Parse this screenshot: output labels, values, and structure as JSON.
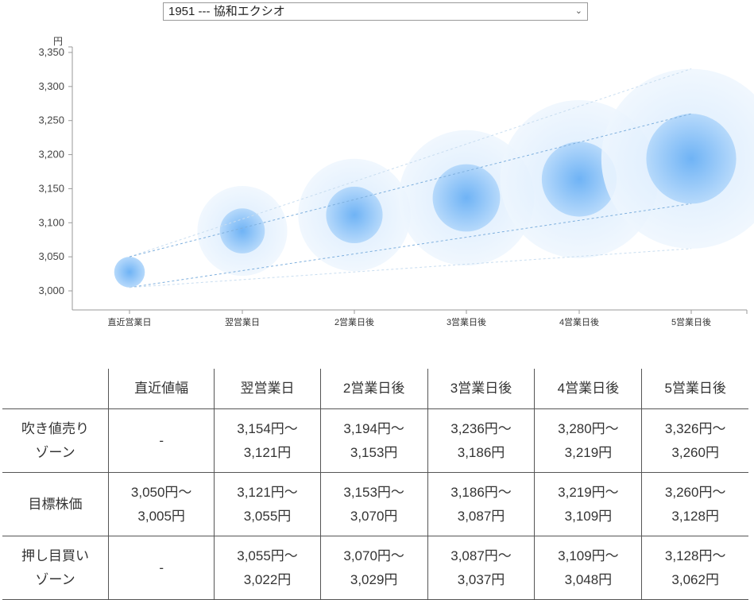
{
  "selector": {
    "value": "1951 --- 協和エクシオ"
  },
  "chart_data": {
    "type": "bubble-range",
    "y_unit": "円",
    "ylim": [
      3000,
      3350
    ],
    "yticks": [
      3000,
      3050,
      3100,
      3150,
      3200,
      3250,
      3300,
      3350
    ],
    "ytick_labels": [
      "3,000",
      "3,050",
      "3,100",
      "3,150",
      "3,200",
      "3,250",
      "3,300",
      "3,350"
    ],
    "categories": [
      "直近営業日",
      "翌営業日",
      "2営業日後",
      "3営業日後",
      "4営業日後",
      "5営業日後"
    ],
    "target_high": [
      3050,
      3121,
      3153,
      3186,
      3219,
      3260
    ],
    "target_low": [
      3005,
      3055,
      3070,
      3087,
      3109,
      3128
    ],
    "sell_zone_high": [
      null,
      3154,
      3194,
      3236,
      3280,
      3326
    ],
    "buy_zone_low": [
      null,
      3022,
      3029,
      3037,
      3048,
      3062
    ]
  },
  "table": {
    "headers": [
      "",
      "直近値幅",
      "翌営業日",
      "2営業日後",
      "3営業日後",
      "4営業日後",
      "5営業日後"
    ],
    "rows": [
      {
        "label": [
          "吹き値売り",
          "ゾーン"
        ],
        "cells": [
          [
            "-"
          ],
          [
            "3,154円～",
            "3,121円"
          ],
          [
            "3,194円～",
            "3,153円"
          ],
          [
            "3,236円～",
            "3,186円"
          ],
          [
            "3,280円～",
            "3,219円"
          ],
          [
            "3,326円～",
            "3,260円"
          ]
        ]
      },
      {
        "label": [
          "目標株価"
        ],
        "cells": [
          [
            "3,050円～",
            "3,005円"
          ],
          [
            "3,121円～",
            "3,055円"
          ],
          [
            "3,153円～",
            "3,070円"
          ],
          [
            "3,186円～",
            "3,087円"
          ],
          [
            "3,219円～",
            "3,109円"
          ],
          [
            "3,260円～",
            "3,128円"
          ]
        ]
      },
      {
        "label": [
          "押し目買い",
          "ゾーン"
        ],
        "cells": [
          [
            "-"
          ],
          [
            "3,055円～",
            "3,022円"
          ],
          [
            "3,070円～",
            "3,029円"
          ],
          [
            "3,087円～",
            "3,037円"
          ],
          [
            "3,109円～",
            "3,048円"
          ],
          [
            "3,128円～",
            "3,062円"
          ]
        ]
      }
    ]
  }
}
